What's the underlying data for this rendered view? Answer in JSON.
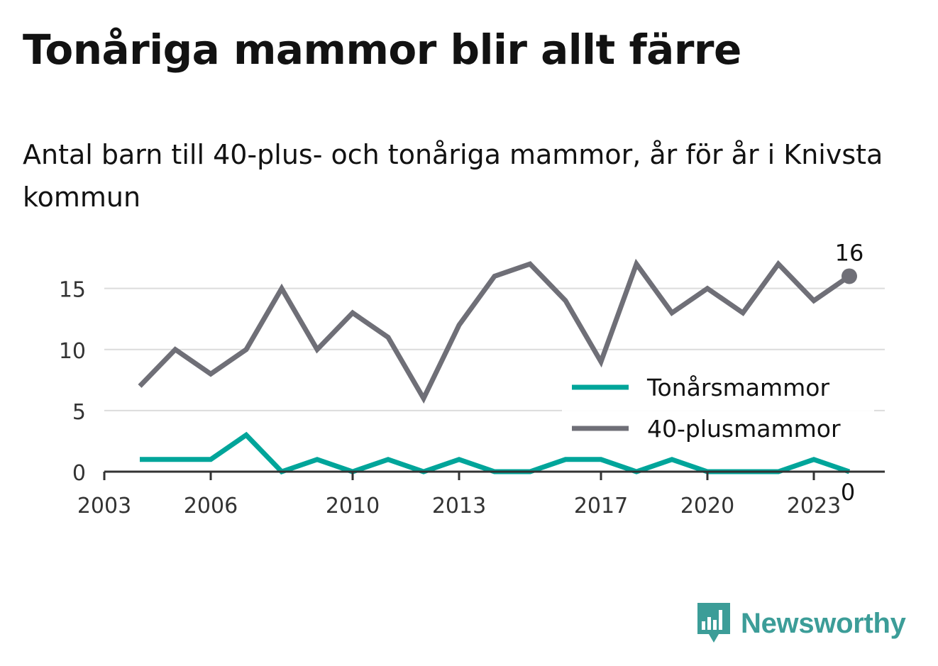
{
  "title": "Tonåriga mammor blir allt färre",
  "subtitle": "Antal barn till 40-plus- och tonåriga mammor, år för år i Knivsta kommun",
  "brand": {
    "name": "Newsworthy",
    "icon": "newsworthy-logo-icon",
    "color": "#3c9d98"
  },
  "chart_data": {
    "type": "line",
    "title": "",
    "xlabel": "",
    "ylabel": "",
    "x": [
      2004,
      2005,
      2006,
      2007,
      2008,
      2009,
      2010,
      2011,
      2012,
      2013,
      2014,
      2015,
      2016,
      2017,
      2018,
      2019,
      2020,
      2021,
      2022,
      2023,
      2024
    ],
    "xticks": [
      2003,
      2006,
      2010,
      2013,
      2017,
      2020,
      2023
    ],
    "yticks": [
      0,
      5,
      10,
      15
    ],
    "xlim": [
      2003,
      2025
    ],
    "ylim": [
      0,
      18
    ],
    "grid": true,
    "legend_position": "right",
    "series": [
      {
        "name": "Tonårsmammor",
        "color": "#00a59a",
        "values": [
          1,
          1,
          1,
          3,
          0,
          1,
          0,
          1,
          0,
          1,
          0,
          0,
          1,
          1,
          0,
          1,
          0,
          0,
          0,
          1,
          0
        ],
        "end_label": "0"
      },
      {
        "name": "40-plusmammor",
        "color": "#6f6f77",
        "values": [
          7,
          10,
          8,
          10,
          15,
          10,
          13,
          11,
          6,
          12,
          16,
          17,
          14,
          9,
          17,
          13,
          15,
          13,
          17,
          14,
          16
        ],
        "end_label": "16"
      }
    ]
  }
}
